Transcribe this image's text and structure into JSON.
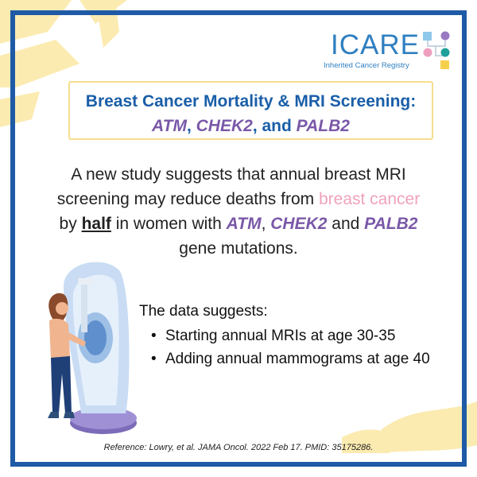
{
  "logo": {
    "wordmark": "ICARE",
    "subtitle": "Inherited Cancer Registry",
    "dot_colors": [
      "#8fc9ea",
      "#ee9fbd",
      "#9a79c4",
      "#1e9f9a",
      "#f6d04d"
    ]
  },
  "title": {
    "line1": "Breast Cancer Mortality & MRI Screening:",
    "genes": [
      "ATM",
      "CHEK2",
      "PALB2"
    ],
    "sep1": ", ",
    "sep2": ", and "
  },
  "body": {
    "line1": "A new study suggests that annual breast MRI",
    "line2_start": "screening may reduce deaths from ",
    "highlight": "breast cancer",
    "line3_start": "by ",
    "half": "half",
    "line3_mid": " in women with ",
    "genes": [
      "ATM",
      "CHEK2",
      "PALB2"
    ],
    "sep1": ", ",
    "sep2": " and ",
    "line4": "gene mutations."
  },
  "data_intro": "The data suggests:",
  "bullets": [
    "Starting annual MRIs at age 30-35",
    "Adding annual mammograms at age 40"
  ],
  "reference": "Reference: Lowry, et al. JAMA Oncol. 2022 Feb 17. PMID: 35175286.",
  "colors": {
    "frame": "#1f5aa6",
    "title_blue": "#1a5ea8",
    "gene_purple": "#7a58a8",
    "highlight_pink": "#f0a2bd",
    "title_border": "#f6dd8e",
    "decoration_yellow": "#fbe9a8"
  }
}
